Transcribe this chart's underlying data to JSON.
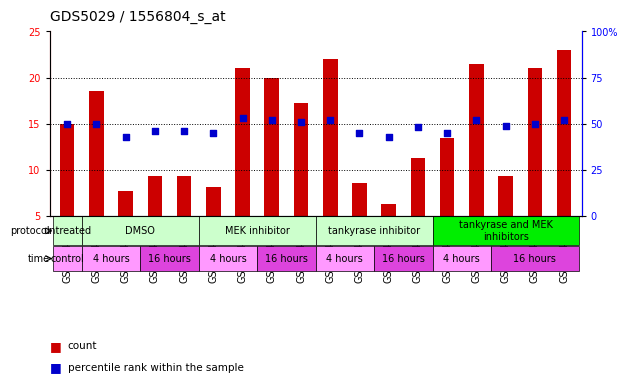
{
  "title": "GDS5029 / 1556804_s_at",
  "samples": [
    "GSM1340521",
    "GSM1340522",
    "GSM1340523",
    "GSM1340524",
    "GSM1340531",
    "GSM1340532",
    "GSM1340527",
    "GSM1340528",
    "GSM1340535",
    "GSM1340536",
    "GSM1340525",
    "GSM1340526",
    "GSM1340533",
    "GSM1340534",
    "GSM1340529",
    "GSM1340530",
    "GSM1340537",
    "GSM1340538"
  ],
  "counts": [
    15.0,
    18.5,
    7.7,
    9.3,
    9.3,
    8.1,
    21.0,
    20.0,
    17.2,
    22.0,
    8.6,
    6.3,
    11.3,
    13.5,
    21.5,
    9.3,
    21.0,
    23.0
  ],
  "percentiles": [
    50,
    50,
    43,
    46,
    46,
    45,
    53,
    52,
    51,
    52,
    45,
    43,
    48,
    45,
    52,
    49,
    50,
    52
  ],
  "ylim_left": [
    5,
    25
  ],
  "ylim_right": [
    0,
    100
  ],
  "yticks_left": [
    5,
    10,
    15,
    20,
    25
  ],
  "yticks_right": [
    0,
    25,
    50,
    75,
    100
  ],
  "bar_color": "#cc0000",
  "dot_color": "#0000cc",
  "protocols": [
    {
      "label": "untreated",
      "start": 0,
      "end": 1,
      "color": "#ccffcc"
    },
    {
      "label": "DMSO",
      "start": 1,
      "end": 5,
      "color": "#ccffcc"
    },
    {
      "label": "MEK inhibitor",
      "start": 5,
      "end": 9,
      "color": "#ccffcc"
    },
    {
      "label": "tankyrase inhibitor",
      "start": 9,
      "end": 13,
      "color": "#ccffcc"
    },
    {
      "label": "tankyrase and MEK\ninhibitors",
      "start": 13,
      "end": 18,
      "color": "#00ee00"
    }
  ],
  "times": [
    {
      "label": "control",
      "start": 0,
      "end": 1,
      "color": "#ff99ff"
    },
    {
      "label": "4 hours",
      "start": 1,
      "end": 3,
      "color": "#ff99ff"
    },
    {
      "label": "16 hours",
      "start": 3,
      "end": 5,
      "color": "#dd44dd"
    },
    {
      "label": "4 hours",
      "start": 5,
      "end": 7,
      "color": "#ff99ff"
    },
    {
      "label": "16 hours",
      "start": 7,
      "end": 9,
      "color": "#dd44dd"
    },
    {
      "label": "4 hours",
      "start": 9,
      "end": 11,
      "color": "#ff99ff"
    },
    {
      "label": "16 hours",
      "start": 11,
      "end": 13,
      "color": "#dd44dd"
    },
    {
      "label": "4 hours",
      "start": 13,
      "end": 15,
      "color": "#ff99ff"
    },
    {
      "label": "16 hours",
      "start": 15,
      "end": 18,
      "color": "#dd44dd"
    }
  ],
  "bg_color": "#ffffff",
  "tick_label_fontsize": 7,
  "title_fontsize": 10
}
